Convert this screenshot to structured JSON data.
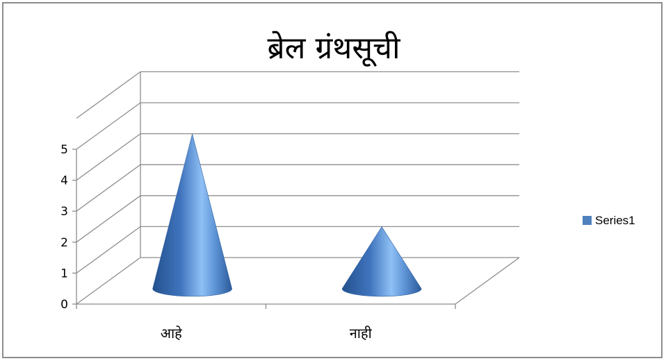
{
  "chart_data": {
    "type": "bar",
    "style": "3d-cone",
    "title": "ब्रेल ग्रंथसूची",
    "categories": [
      "आहे",
      "नाही"
    ],
    "series": [
      {
        "name": "Series1",
        "values": [
          5,
          2
        ],
        "color": "#4f81bd"
      }
    ],
    "ylim": [
      0,
      5
    ],
    "yticks": [
      "0",
      "1",
      "2",
      "3",
      "4",
      "5"
    ],
    "grid": true,
    "legend": "right"
  }
}
